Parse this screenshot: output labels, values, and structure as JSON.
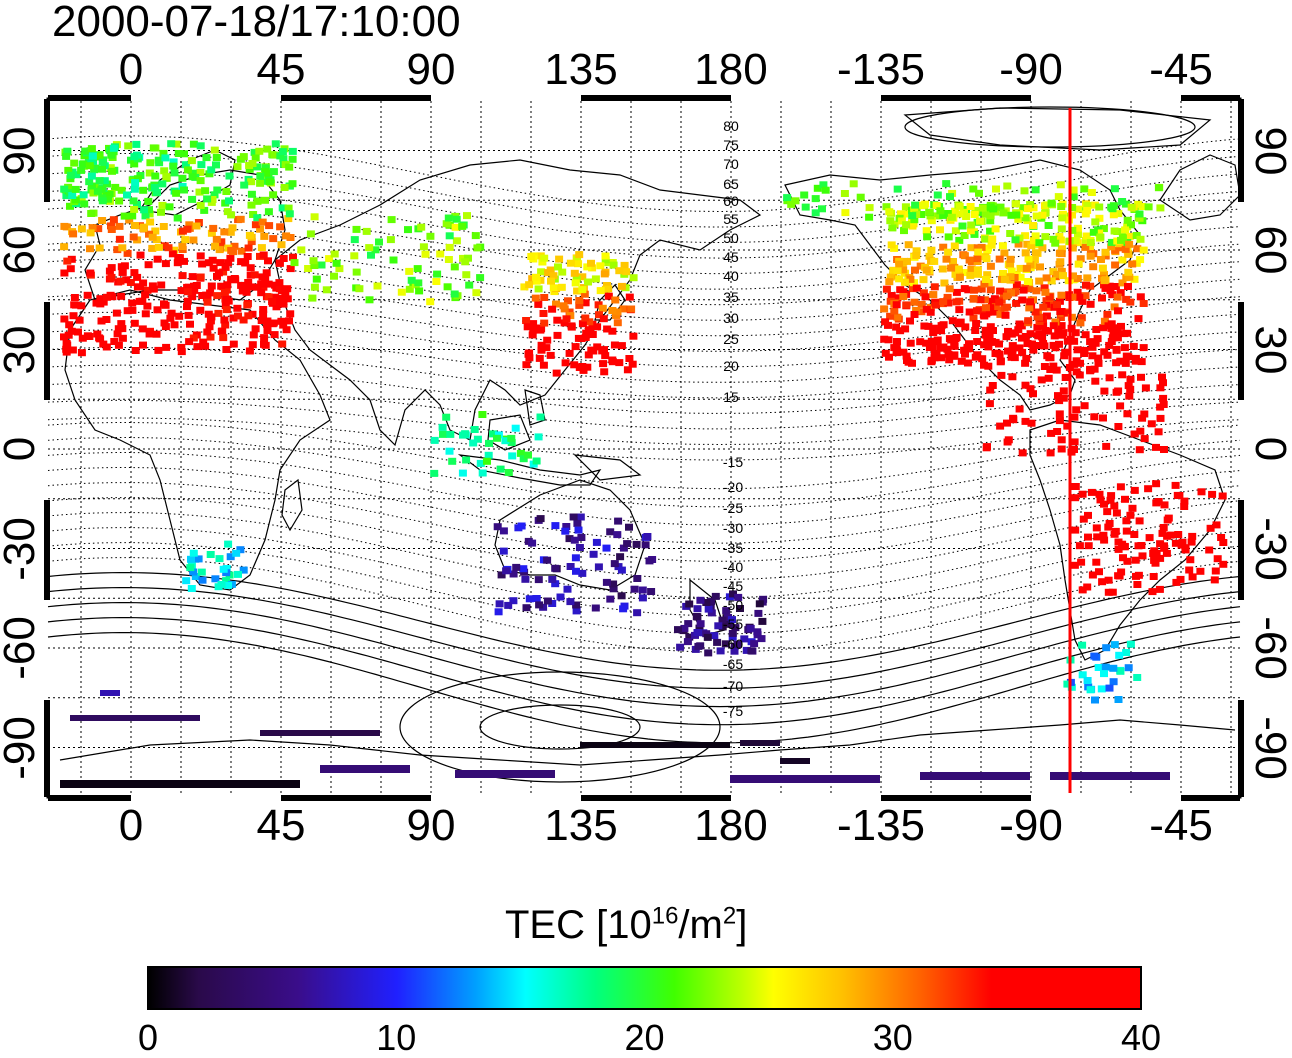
{
  "title": "2000-07-18/17:10:00",
  "map": {
    "lon_ticks_top": [
      "0",
      "45",
      "90",
      "135",
      "180",
      "-135",
      "-90",
      "-45"
    ],
    "lon_ticks_bottom": [
      "0",
      "45",
      "90",
      "135",
      "180",
      "-135",
      "-90",
      "-45"
    ],
    "lat_ticks_left": [
      "90",
      "60",
      "30",
      "0",
      "-30",
      "-60",
      "-90"
    ],
    "lat_ticks_right": [
      "90",
      "60",
      "30",
      "0",
      "-30",
      "-60",
      "-90"
    ],
    "contour_labels_north": [
      "80",
      "75",
      "70",
      "65",
      "60",
      "55",
      "50",
      "45",
      "40",
      "35",
      "30",
      "25",
      "20",
      "15"
    ],
    "contour_labels_south": [
      "-15",
      "-20",
      "-25",
      "-30",
      "-35",
      "-40",
      "-45",
      "-50",
      "-55",
      "-60",
      "-65",
      "-70",
      "-75"
    ],
    "terminator_line_color": "#ff0000",
    "terminator_longitude": -77
  },
  "colorbar": {
    "label_main": "TEC  [10",
    "label_exp": "16",
    "label_mid": "/m",
    "label_exp2": "2",
    "label_end": "]",
    "ticks": [
      "0",
      "10",
      "20",
      "30",
      "40"
    ],
    "colors": [
      "#000000",
      "#3a0d8a",
      "#2020ff",
      "#00ffff",
      "#40ff00",
      "#ffff00",
      "#ff6000",
      "#ff0000"
    ],
    "range": [
      0,
      40
    ]
  }
}
